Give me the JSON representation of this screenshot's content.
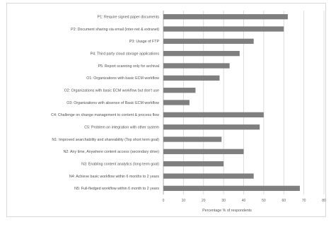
{
  "chart_data": {
    "type": "bar",
    "orientation": "horizontal",
    "title": "",
    "xlabel": "Percentage % of respondents",
    "ylabel": "",
    "xlim": [
      0,
      80
    ],
    "xticks": [
      0,
      10,
      20,
      30,
      40,
      50,
      60,
      70,
      80
    ],
    "grid": true,
    "legend": "none",
    "bar_color": "#7f7f7f",
    "categories": [
      "P1: Require signed paper documents",
      "P2: Document sharing via email (inter-net & extranet)",
      "P3: Usage of FTP",
      "P4: Third party cloud storage applications",
      "P5: Report scanning only for archival",
      "O1: Organizations with basic ECM workflow",
      "O2: Organizations with basic ECM workflow but don't use",
      "O3: Organizations with absence of Basic ECM workflow",
      "C4: Challenge on change management to content & process flow",
      "C5: Problem on integration with other system",
      "N1: Improved searchability and shareability (Top short term goal)",
      "N2: Any time, Anywhere content access (secondary drive)",
      "N3: Enabling content analytics (long term goal)",
      "N4: Achieve basic workflow within 6 months to 2 years",
      "N5: Full-fledged workflow within 6 month to 2 years"
    ],
    "values": [
      62,
      60,
      45,
      38,
      33,
      28,
      16,
      13,
      50,
      48,
      29,
      40,
      30,
      45,
      68
    ]
  }
}
